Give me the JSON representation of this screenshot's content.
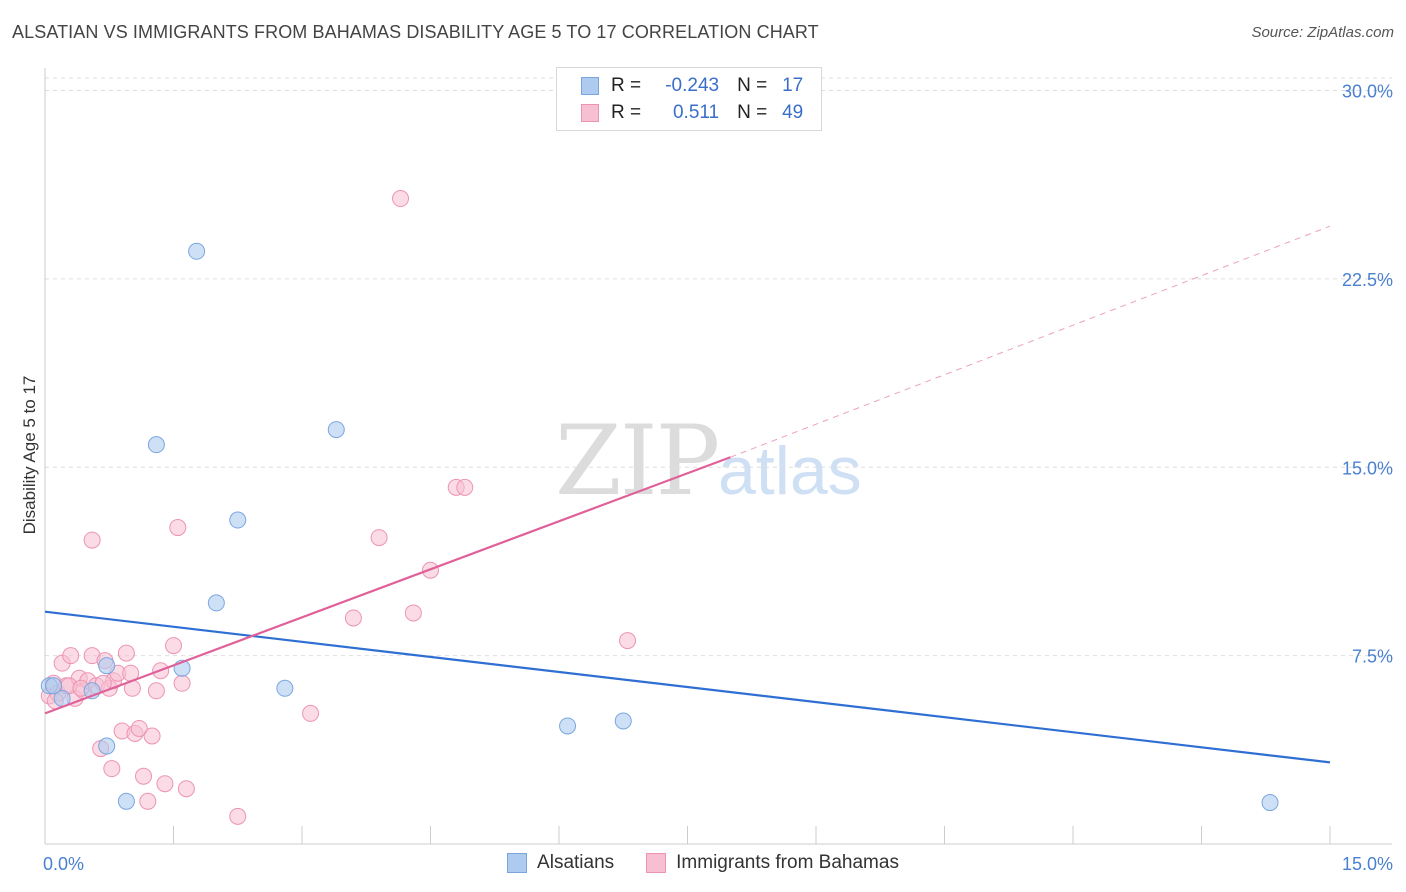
{
  "title": "ALSATIAN VS IMMIGRANTS FROM BAHAMAS DISABILITY AGE 5 TO 17 CORRELATION CHART",
  "source": "Source: ZipAtlas.com",
  "watermark": {
    "zip": "ZIP",
    "atlas": "atlas"
  },
  "legend_top": {
    "rows": [
      {
        "r_label": "R =",
        "r_value": "-0.243",
        "n_label": "N =",
        "n_value": "17"
      },
      {
        "r_label": "R =",
        "r_value": "0.511",
        "n_label": "N =",
        "n_value": "49"
      }
    ]
  },
  "colors": {
    "blue_fill": "#aecbef",
    "blue_stroke": "#7aa6e0",
    "blue_line": "#2f6fd3",
    "pink_fill": "#f7c0d2",
    "pink_stroke": "#ec94b3",
    "pink_line": "#e0609a",
    "grid": "#dddddd",
    "tick": "#4a80d0"
  },
  "chart_data": {
    "type": "scatter",
    "title": "ALSATIAN VS IMMIGRANTS FROM BAHAMAS DISABILITY AGE 5 TO 17 CORRELATION CHART",
    "xlabel": "",
    "ylabel": "Disability Age 5 to 17",
    "xlim": [
      0,
      15
    ],
    "ylim": [
      0,
      30.5
    ],
    "x_ticks": [
      {
        "value": 0,
        "label": "0.0%"
      },
      {
        "value": 15,
        "label": "15.0%"
      }
    ],
    "y_ticks": [
      {
        "value": 7.5,
        "label": "7.5%"
      },
      {
        "value": 15,
        "label": "15.0%"
      },
      {
        "value": 22.5,
        "label": "22.5%"
      },
      {
        "value": 30,
        "label": "30.0%"
      }
    ],
    "legend": [
      "Alsatians",
      "Immigrants from Bahamas"
    ],
    "series": [
      {
        "name": "Alsatians",
        "points": [
          [
            0.05,
            6.3
          ],
          [
            0.2,
            5.8
          ],
          [
            0.55,
            6.1
          ],
          [
            0.72,
            7.1
          ],
          [
            0.72,
            3.9
          ],
          [
            0.95,
            1.7
          ],
          [
            1.3,
            15.9
          ],
          [
            1.6,
            7.0
          ],
          [
            1.77,
            23.6
          ],
          [
            2.0,
            9.6
          ],
          [
            2.25,
            12.9
          ],
          [
            2.8,
            6.2
          ],
          [
            3.4,
            16.5
          ],
          [
            6.1,
            4.7
          ],
          [
            6.75,
            4.9
          ],
          [
            14.3,
            1.65
          ],
          [
            0.1,
            6.3
          ]
        ],
        "trend": {
          "x0": 0,
          "y0": 9.25,
          "x1": 15,
          "y1": 3.25,
          "extrapolated_to": 15
        }
      },
      {
        "name": "Immigrants from Bahamas",
        "points": [
          [
            0.05,
            5.9
          ],
          [
            0.1,
            6.4
          ],
          [
            0.15,
            6.0
          ],
          [
            0.2,
            7.2
          ],
          [
            0.25,
            6.3
          ],
          [
            0.3,
            7.5
          ],
          [
            0.35,
            5.8
          ],
          [
            0.4,
            6.6
          ],
          [
            0.45,
            6.1
          ],
          [
            0.5,
            6.5
          ],
          [
            0.55,
            7.5
          ],
          [
            0.6,
            6.3
          ],
          [
            0.65,
            3.8
          ],
          [
            0.7,
            7.3
          ],
          [
            0.75,
            6.2
          ],
          [
            0.8,
            6.5
          ],
          [
            0.78,
            3.0
          ],
          [
            0.85,
            6.8
          ],
          [
            0.9,
            4.5
          ],
          [
            0.95,
            7.6
          ],
          [
            1.0,
            6.8
          ],
          [
            1.05,
            4.4
          ],
          [
            1.1,
            4.6
          ],
          [
            1.15,
            2.7
          ],
          [
            1.2,
            1.7
          ],
          [
            1.25,
            4.3
          ],
          [
            1.3,
            6.1
          ],
          [
            1.35,
            6.9
          ],
          [
            1.4,
            2.4
          ],
          [
            1.5,
            7.9
          ],
          [
            1.55,
            12.6
          ],
          [
            1.6,
            6.4
          ],
          [
            1.65,
            2.2
          ],
          [
            2.25,
            1.1
          ],
          [
            3.1,
            5.2
          ],
          [
            3.6,
            9.0
          ],
          [
            3.9,
            12.2
          ],
          [
            4.15,
            25.7
          ],
          [
            4.3,
            9.2
          ],
          [
            4.5,
            10.9
          ],
          [
            4.8,
            14.2
          ],
          [
            4.9,
            14.2
          ],
          [
            6.8,
            8.1
          ],
          [
            0.55,
            12.1
          ],
          [
            0.12,
            5.7
          ],
          [
            0.28,
            6.3
          ],
          [
            0.42,
            6.2
          ],
          [
            1.02,
            6.2
          ],
          [
            0.68,
            6.4
          ]
        ],
        "trend": {
          "x0": 0,
          "y0": 5.2,
          "x1": 8.0,
          "y1": 15.4,
          "extrapolated_to": 15,
          "y_extrapolated": 24.6
        }
      }
    ]
  },
  "legend_bottom": {
    "items": [
      "Alsatians",
      "Immigrants from Bahamas"
    ]
  }
}
